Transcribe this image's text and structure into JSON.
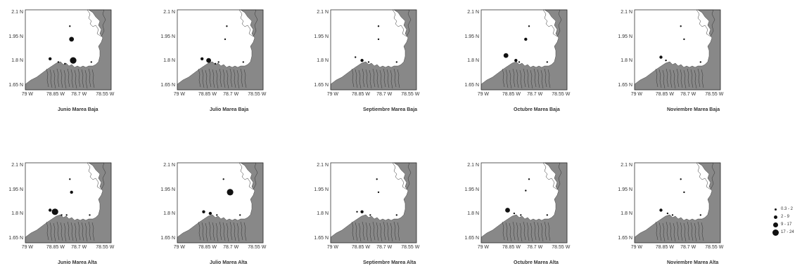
{
  "axis_labels": {
    "y": [
      "2.1 N",
      "1.95 N",
      "1.8 N",
      "1.65 N"
    ],
    "x": [
      "79 W",
      "78.85 W",
      "78.7 W",
      "78.55 W"
    ]
  },
  "legend": [
    {
      "label": "0.3 -  2"
    },
    {
      "label": "2 -  9"
    },
    {
      "label": "9 -  17"
    },
    {
      "label": "17 -  24"
    }
  ],
  "colors": {
    "land": "#888888",
    "water": "#ffffff",
    "dot": "#111111",
    "frame": "#333333"
  },
  "panels": [
    {
      "caption": "Junio Marea Baja",
      "points": [
        [
          78.75,
          2.02,
          1
        ],
        [
          78.74,
          1.94,
          3
        ],
        [
          78.87,
          1.82,
          2
        ],
        [
          78.82,
          1.8,
          1
        ],
        [
          78.78,
          1.79,
          1
        ],
        [
          78.73,
          1.81,
          4
        ],
        [
          78.62,
          1.8,
          1
        ]
      ]
    },
    {
      "caption": "Julio  Marea Baja",
      "points": [
        [
          78.72,
          2.02,
          1
        ],
        [
          78.87,
          1.82,
          2
        ],
        [
          78.83,
          1.81,
          3
        ],
        [
          78.79,
          1.79,
          1
        ],
        [
          78.73,
          1.94,
          1
        ],
        [
          78.77,
          1.8,
          1
        ],
        [
          78.62,
          1.8,
          1
        ]
      ]
    },
    {
      "caption": "Septiembre  Marea Baja",
      "points": [
        [
          78.73,
          2.02,
          1
        ],
        [
          78.73,
          1.94,
          1
        ],
        [
          78.87,
          1.83,
          1
        ],
        [
          78.83,
          1.81,
          2
        ],
        [
          78.79,
          1.8,
          1
        ],
        [
          78.62,
          1.8,
          1
        ]
      ]
    },
    {
      "caption": "Octubre  Marea Baja",
      "points": [
        [
          78.73,
          2.02,
          1
        ],
        [
          78.87,
          1.84,
          3
        ],
        [
          78.75,
          1.94,
          2
        ],
        [
          78.81,
          1.81,
          2
        ],
        [
          78.79,
          1.8,
          1
        ],
        [
          78.62,
          1.8,
          1
        ]
      ]
    },
    {
      "caption": "Noviembre  Marea Baja",
      "points": [
        [
          78.74,
          2.02,
          1
        ],
        [
          78.72,
          1.94,
          1
        ],
        [
          78.86,
          1.83,
          2
        ],
        [
          78.83,
          1.81,
          1
        ],
        [
          78.62,
          1.8,
          1
        ]
      ]
    },
    {
      "caption": "Junio Marea Alta",
      "points": [
        [
          78.75,
          2.02,
          1
        ],
        [
          78.74,
          1.94,
          2
        ],
        [
          78.87,
          1.83,
          2
        ],
        [
          78.84,
          1.82,
          4
        ],
        [
          78.8,
          1.8,
          1
        ],
        [
          78.77,
          1.8,
          1
        ],
        [
          78.63,
          1.8,
          1
        ]
      ]
    },
    {
      "caption": "Julio  Marea Alta",
      "points": [
        [
          78.74,
          2.02,
          1
        ],
        [
          78.7,
          1.94,
          4
        ],
        [
          78.86,
          1.82,
          2
        ],
        [
          78.82,
          1.81,
          2
        ],
        [
          78.78,
          1.8,
          1
        ],
        [
          78.64,
          1.8,
          1
        ]
      ]
    },
    {
      "caption": "Septiembre  Marea Alta",
      "points": [
        [
          78.74,
          2.02,
          1
        ],
        [
          78.73,
          1.94,
          1
        ],
        [
          78.86,
          1.82,
          1
        ],
        [
          78.83,
          1.82,
          2
        ],
        [
          78.78,
          1.8,
          1
        ],
        [
          78.62,
          1.8,
          1
        ]
      ]
    },
    {
      "caption": "Octubre  Marea Alta",
      "points": [
        [
          78.73,
          2.02,
          1
        ],
        [
          78.75,
          1.95,
          1
        ],
        [
          78.86,
          1.83,
          3
        ],
        [
          78.82,
          1.81,
          1
        ],
        [
          78.78,
          1.8,
          1
        ],
        [
          78.62,
          1.8,
          1
        ]
      ]
    },
    {
      "caption": "Noviembre  Marea Alta",
      "points": [
        [
          78.74,
          2.02,
          1
        ],
        [
          78.72,
          1.94,
          1
        ],
        [
          78.86,
          1.83,
          2
        ],
        [
          78.82,
          1.81,
          1
        ],
        [
          78.79,
          1.8,
          1
        ],
        [
          78.62,
          1.8,
          1
        ]
      ]
    }
  ]
}
